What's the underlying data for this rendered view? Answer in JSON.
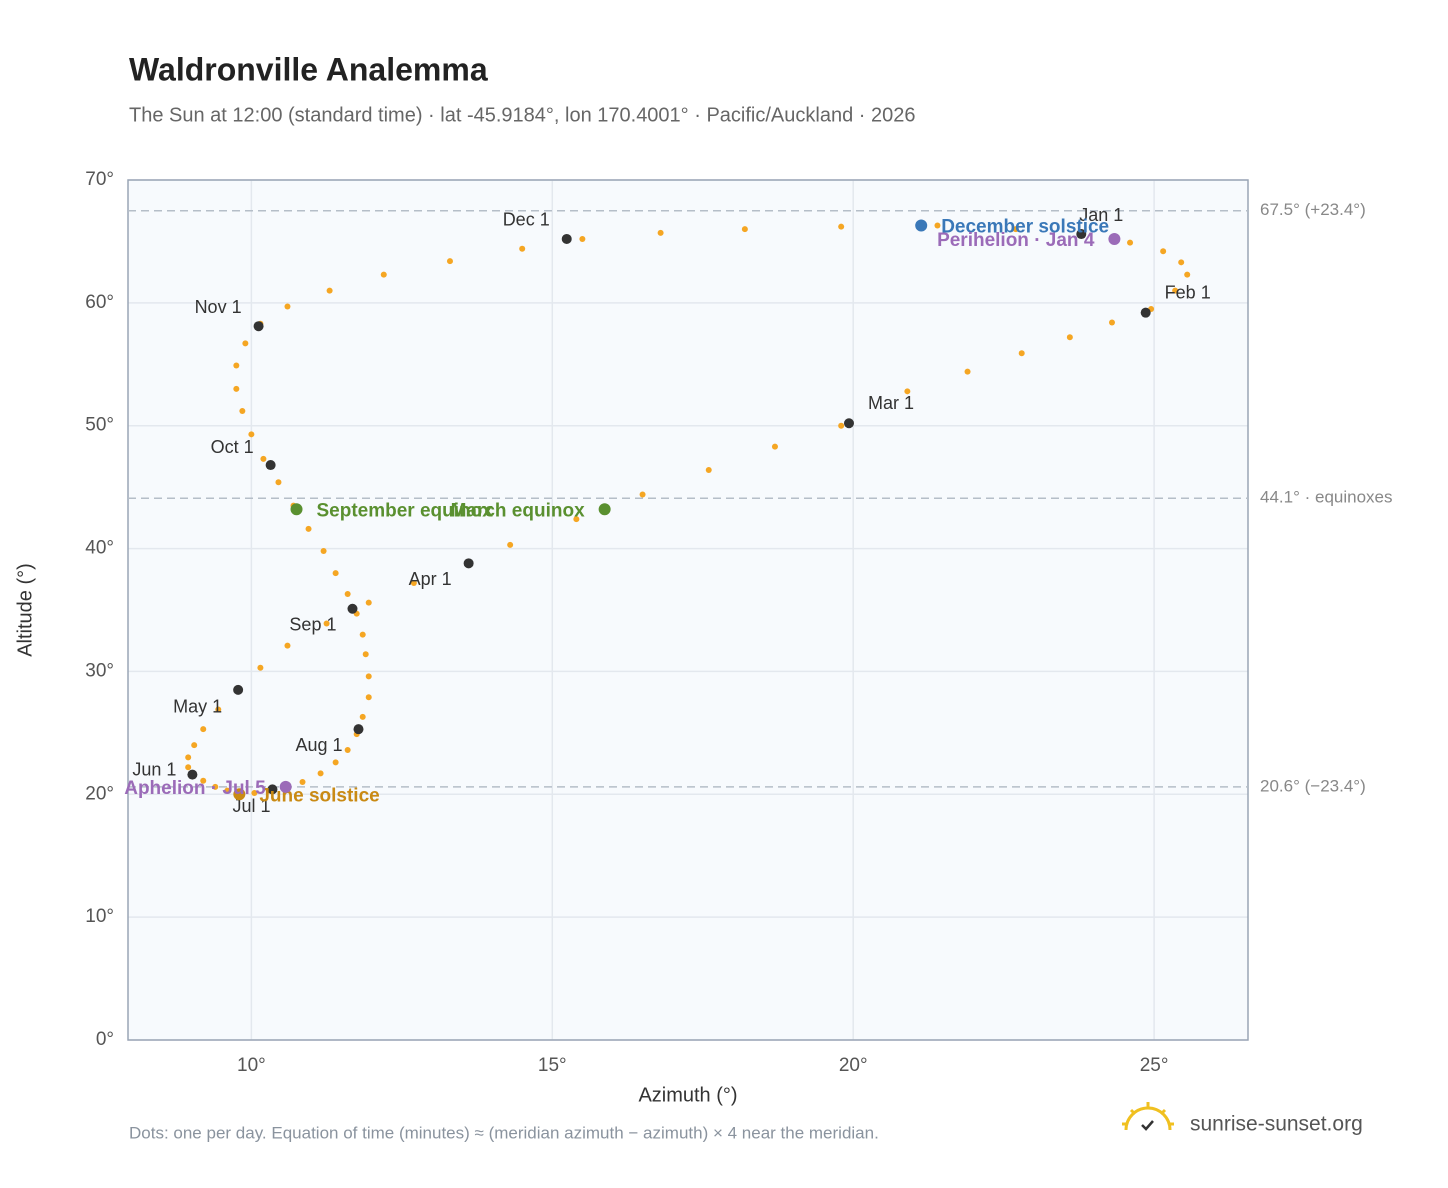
{
  "chart_data": {
    "type": "scatter",
    "title": "Waldronville Analemma",
    "subtitle": "The Sun at 12:00 (standard time) · lat -45.9184°, lon 170.4001° · Pacific/Auckland · 2026",
    "x_label": "Azimuth (°)",
    "y_label": "Altitude (°)",
    "footnote": "Dots: one per day. Equation of time (minutes) ≈ (meridian azimuth − azimuth) × 4 near the meridian.",
    "brand": "sunrise-sunset.org",
    "xlim": [
      7.95,
      26.56
    ],
    "ylim": [
      0,
      70
    ],
    "xticks": [
      {
        "value": 10,
        "label": "10°"
      },
      {
        "value": 15,
        "label": "15°"
      },
      {
        "value": 20,
        "label": "20°"
      },
      {
        "value": 25,
        "label": "25°"
      }
    ],
    "yticks": [
      {
        "value": 0,
        "label": "0°"
      },
      {
        "value": 10,
        "label": "10°"
      },
      {
        "value": 20,
        "label": "20°"
      },
      {
        "value": 30,
        "label": "30°"
      },
      {
        "value": 40,
        "label": "40°"
      },
      {
        "value": 50,
        "label": "50°"
      },
      {
        "value": 60,
        "label": "60°"
      },
      {
        "value": 70,
        "label": "70°"
      }
    ],
    "grid": true,
    "reference_lines": [
      {
        "value": 67.5,
        "label": "67.5° (+23.4°)"
      },
      {
        "value": 44.1,
        "label": "44.1° · equinoxes"
      },
      {
        "value": 20.6,
        "label": "20.6° (−23.4°)"
      }
    ],
    "days": {
      "color": "#f5a623",
      "x": [
        23.79,
        24.6,
        25.15,
        25.45,
        25.55,
        25.35,
        24.95,
        24.3,
        23.6,
        22.8,
        21.9,
        20.9,
        19.8,
        18.7,
        17.6,
        16.5,
        15.4,
        14.3,
        13.6,
        12.7,
        11.95,
        11.25,
        10.6,
        10.15,
        9.78,
        9.45,
        9.2,
        9.05,
        8.95,
        8.95,
        9.0,
        9.2,
        9.4,
        9.6,
        9.8,
        10.05,
        10.3,
        10.57,
        10.85,
        11.15,
        11.4,
        11.6,
        11.75,
        11.85,
        11.95,
        11.95,
        11.9,
        11.85,
        11.75,
        11.6,
        11.4,
        11.2,
        10.95,
        10.7,
        10.45,
        10.2,
        10.0,
        9.85,
        9.75,
        9.75,
        9.9,
        10.15,
        10.6,
        11.3,
        12.2,
        13.3,
        14.5,
        15.5,
        16.8,
        18.2,
        19.8,
        21.4,
        22.7
      ],
      "y": [
        65.6,
        64.9,
        64.2,
        63.3,
        62.3,
        61.0,
        59.5,
        58.4,
        57.2,
        55.9,
        54.4,
        52.8,
        50.0,
        48.3,
        46.4,
        44.4,
        42.4,
        40.3,
        38.8,
        37.2,
        35.6,
        33.9,
        32.1,
        30.3,
        28.5,
        26.9,
        25.3,
        24.0,
        23.0,
        22.2,
        21.6,
        21.1,
        20.6,
        20.3,
        20.0,
        20.1,
        20.3,
        20.6,
        21.0,
        21.7,
        22.6,
        23.6,
        24.9,
        26.3,
        27.9,
        29.6,
        31.4,
        33.0,
        34.7,
        36.3,
        38.0,
        39.8,
        41.6,
        43.5,
        45.4,
        47.3,
        49.3,
        51.2,
        53.0,
        54.9,
        56.7,
        58.3,
        59.7,
        61.0,
        62.3,
        63.4,
        64.4,
        65.2,
        65.7,
        66.0,
        66.2,
        66.3,
        66.0
      ]
    },
    "months": {
      "color": "#333333",
      "labels": [
        "Jan 1",
        "Feb 1",
        "Mar 1",
        "Apr 1",
        "May 1",
        "Jun 1",
        "Jul 1",
        "Aug 1",
        "Sep 1",
        "Oct 1",
        "Nov 1",
        "Dec 1"
      ],
      "x": [
        23.79,
        24.86,
        19.93,
        13.61,
        9.78,
        9.02,
        10.35,
        11.78,
        11.68,
        10.32,
        10.12,
        15.24
      ],
      "y": [
        65.6,
        59.2,
        50.2,
        38.8,
        28.5,
        21.6,
        20.4,
        25.3,
        35.1,
        46.8,
        58.1,
        65.2
      ]
    },
    "events": [
      {
        "label": "December solstice",
        "x": 21.13,
        "y": 66.3,
        "color": "#3a78b8"
      },
      {
        "label": "March equinox",
        "x": 15.87,
        "y": 43.2,
        "color": "#5a9030"
      },
      {
        "label": "September equinox",
        "x": 10.75,
        "y": 43.2,
        "color": "#5a9030"
      },
      {
        "label": "June solstice",
        "x": 9.8,
        "y": 20.0,
        "color": "#c98a14"
      },
      {
        "label": "Perihelion · Jan 4",
        "x": 24.34,
        "y": 65.2,
        "color": "#9b6bb8"
      },
      {
        "label": "Aphelion · Jul 5",
        "x": 10.57,
        "y": 20.6,
        "color": "#9b6bb8"
      }
    ]
  }
}
